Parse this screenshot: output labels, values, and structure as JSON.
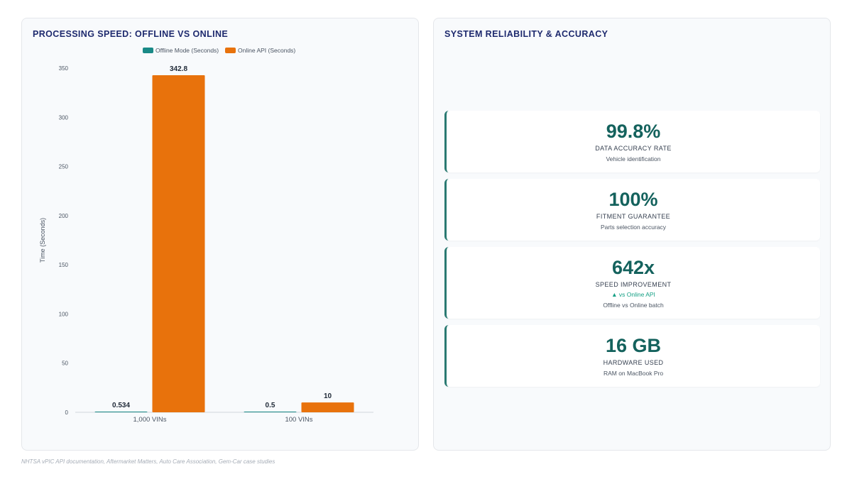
{
  "left_panel": {
    "title": "PROCESSING SPEED: OFFLINE VS ONLINE"
  },
  "right_panel": {
    "title": "SYSTEM RELIABILITY & ACCURACY"
  },
  "chart_data": {
    "type": "bar",
    "categories": [
      "1,000 VINs",
      "100 VINs"
    ],
    "series": [
      {
        "name": "Offline Mode (Seconds)",
        "values": [
          0.534,
          0.5
        ],
        "labels": [
          "0.534",
          "0.5"
        ],
        "color": "#1a8a87"
      },
      {
        "name": "Online API (Seconds)",
        "values": [
          342.8,
          10
        ],
        "labels": [
          "342.8",
          "10"
        ],
        "color": "#e8720c"
      }
    ],
    "ylabel": "Time (Seconds)",
    "ylim": [
      0,
      350
    ],
    "yticks": [
      0,
      50,
      100,
      150,
      200,
      250,
      300,
      350
    ],
    "legend_position": "top",
    "grid": false
  },
  "cards": [
    {
      "value": "99.8%",
      "label": "DATA ACCURACY RATE",
      "note": "",
      "sub": "Vehicle identification"
    },
    {
      "value": "100%",
      "label": "FITMENT GUARANTEE",
      "note": "",
      "sub": "Parts selection accuracy"
    },
    {
      "value": "642x",
      "label": "SPEED IMPROVEMENT",
      "note": "▲ vs Online API",
      "sub": "Offline vs Online batch"
    },
    {
      "value": "16 GB",
      "label": "HARDWARE USED",
      "note": "",
      "sub": "RAM on MacBook Pro"
    }
  ],
  "footer": "NHTSA vPIC API documentation, Aftermarket Matters, Auto Care Association, Gem-Car case studies"
}
